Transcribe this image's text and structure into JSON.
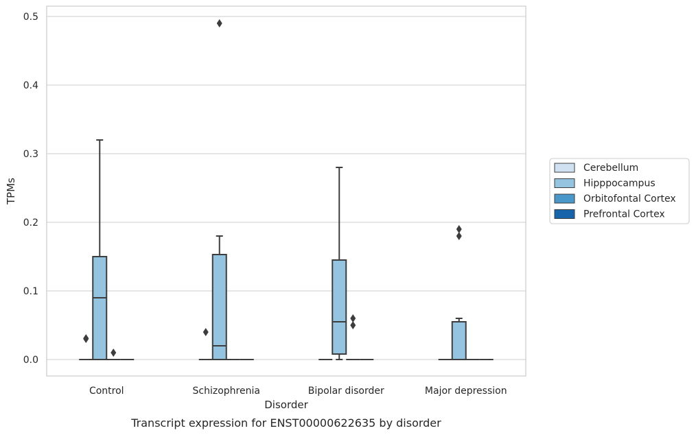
{
  "chart_data": {
    "type": "box",
    "caption": "Transcript expression for ENST00000622635 by disorder",
    "xlabel": "Disorder",
    "ylabel": "TPMs",
    "ylim": [
      -0.024,
      0.515
    ],
    "yticks": [
      0.0,
      0.1,
      0.2,
      0.3,
      0.4,
      0.5
    ],
    "ytick_labels": [
      "0.0",
      "0.1",
      "0.2",
      "0.3",
      "0.4",
      "0.5"
    ],
    "categories": [
      "Control",
      "Schizophrenia",
      "Bipolar disorder",
      "Major depression"
    ],
    "grid": "horizontal",
    "legend": {
      "placement": "right",
      "entries": [
        "Cerebellum",
        "Hipppocampus",
        "Orbitofontal Cortex",
        "Prefrontal Cortex"
      ]
    },
    "colors": {
      "Cerebellum": "#d0e1f2",
      "Hipppocampus": "#94c4df",
      "Orbitofontal Cortex": "#4a98c9",
      "Prefrontal Cortex": "#1764ab"
    },
    "series": [
      {
        "name": "Cerebellum",
        "boxes": [
          {
            "category": "Control",
            "whisker_low": 0,
            "q1": 0,
            "median": 0,
            "q3": 0,
            "whisker_high": 0,
            "outliers": [
              0.03,
              0.031
            ]
          },
          {
            "category": "Schizophrenia",
            "whisker_low": 0,
            "q1": 0,
            "median": 0,
            "q3": 0,
            "whisker_high": 0,
            "outliers": [
              0.04
            ]
          },
          {
            "category": "Bipolar disorder",
            "whisker_low": 0,
            "q1": 0,
            "median": 0,
            "q3": 0,
            "whisker_high": 0,
            "outliers": []
          },
          {
            "category": "Major depression",
            "whisker_low": 0,
            "q1": 0,
            "median": 0,
            "q3": 0,
            "whisker_high": 0,
            "outliers": []
          }
        ]
      },
      {
        "name": "Hipppocampus",
        "boxes": [
          {
            "category": "Control",
            "whisker_low": 0,
            "q1": 0,
            "median": 0.09,
            "q3": 0.15,
            "whisker_high": 0.32,
            "outliers": []
          },
          {
            "category": "Schizophrenia",
            "whisker_low": 0,
            "q1": 0,
            "median": 0.02,
            "q3": 0.153,
            "whisker_high": 0.18,
            "outliers": [
              0.49
            ]
          },
          {
            "category": "Bipolar disorder",
            "whisker_low": 0,
            "q1": 0.008,
            "median": 0.055,
            "q3": 0.145,
            "whisker_high": 0.28,
            "outliers": []
          },
          {
            "category": "Major depression",
            "whisker_low": 0,
            "q1": 0,
            "median": 0,
            "q3": 0.055,
            "whisker_high": 0.06,
            "outliers": [
              0.18,
              0.19
            ]
          }
        ]
      },
      {
        "name": "Orbitofontal Cortex",
        "boxes": [
          {
            "category": "Control",
            "whisker_low": 0,
            "q1": 0,
            "median": 0,
            "q3": 0,
            "whisker_high": 0,
            "outliers": [
              0.01
            ]
          },
          {
            "category": "Schizophrenia",
            "whisker_low": 0,
            "q1": 0,
            "median": 0,
            "q3": 0,
            "whisker_high": 0,
            "outliers": []
          },
          {
            "category": "Bipolar disorder",
            "whisker_low": 0,
            "q1": 0,
            "median": 0,
            "q3": 0,
            "whisker_high": 0,
            "outliers": [
              0.05,
              0.06
            ]
          },
          {
            "category": "Major depression",
            "whisker_low": 0,
            "q1": 0,
            "median": 0,
            "q3": 0,
            "whisker_high": 0,
            "outliers": []
          }
        ]
      },
      {
        "name": "Prefrontal Cortex",
        "boxes": [
          {
            "category": "Control",
            "whisker_low": 0,
            "q1": 0,
            "median": 0,
            "q3": 0,
            "whisker_high": 0,
            "outliers": []
          },
          {
            "category": "Schizophrenia",
            "whisker_low": 0,
            "q1": 0,
            "median": 0,
            "q3": 0,
            "whisker_high": 0,
            "outliers": []
          },
          {
            "category": "Bipolar disorder",
            "whisker_low": 0,
            "q1": 0,
            "median": 0,
            "q3": 0,
            "whisker_high": 0,
            "outliers": []
          },
          {
            "category": "Major depression",
            "whisker_low": 0,
            "q1": 0,
            "median": 0,
            "q3": 0,
            "whisker_high": 0,
            "outliers": []
          }
        ]
      }
    ]
  }
}
